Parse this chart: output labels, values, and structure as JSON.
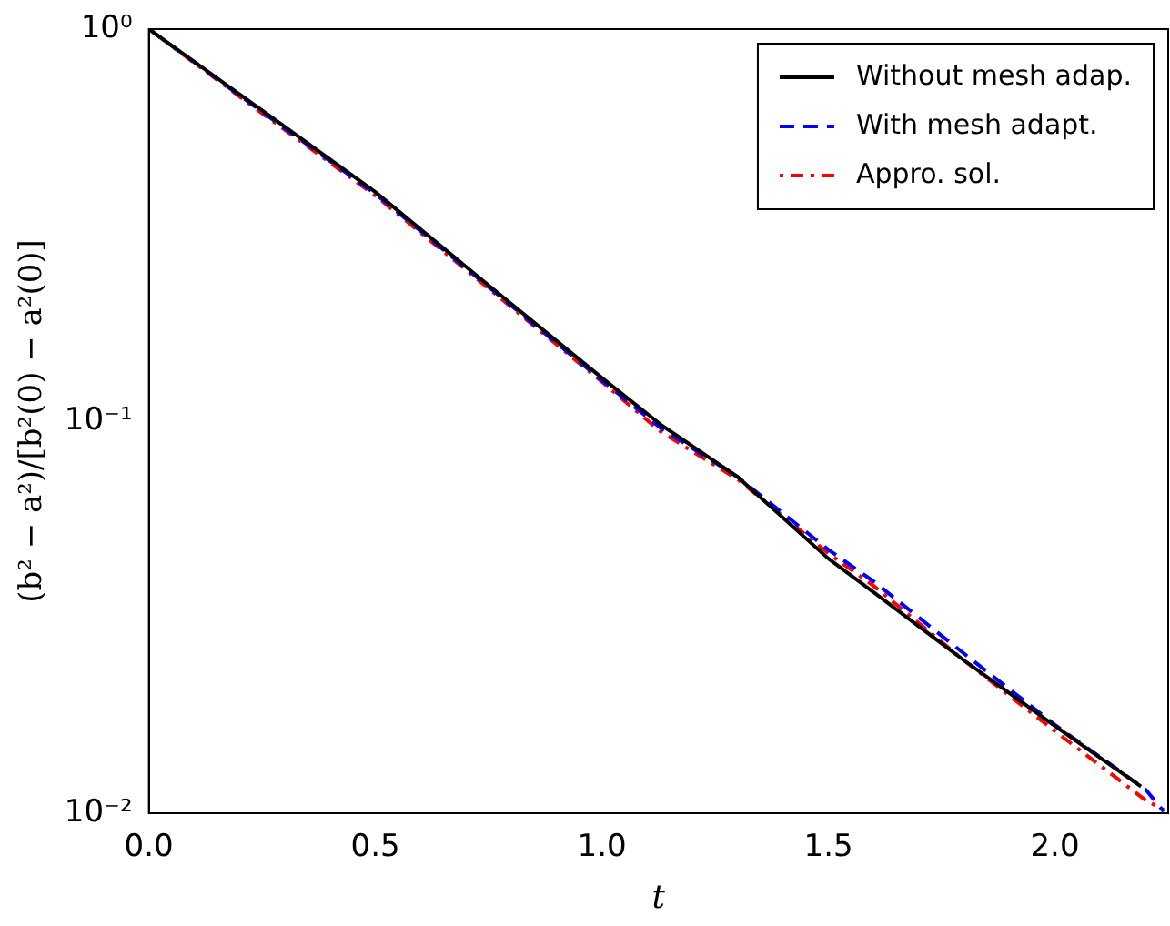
{
  "chart_data": {
    "type": "line",
    "xlabel": "t",
    "ylabel": "(b² − a²)/[b²(0) − a²(0)]",
    "log": "y",
    "grid": false,
    "legend": "top right",
    "marker": "none",
    "xlim": [
      0,
      2.25
    ],
    "xticks": [
      {
        "value": 0,
        "label": "0.0"
      },
      {
        "value": 0.5,
        "label": "0.5"
      },
      {
        "value": 1,
        "label": "1.0"
      },
      {
        "value": 1.5,
        "label": "1.5"
      },
      {
        "value": 2,
        "label": "2.0"
      }
    ],
    "ylim": [
      0.01,
      1
    ],
    "yticks": [
      {
        "value": 0.01,
        "label": "10⁻²"
      },
      {
        "value": 0.1,
        "label": "10⁻¹"
      },
      {
        "value": 1,
        "label": "10⁰"
      }
    ],
    "series": [
      {
        "name": "Without mesh adap.",
        "color": "#000000",
        "line_style": "solid",
        "x": [
          0,
          0.25,
          0.5,
          0.75,
          1.0,
          1.13,
          1.3,
          1.5,
          1.6,
          1.8,
          2.0,
          2.19
        ],
        "values": [
          1,
          0.62,
          0.384,
          0.222,
          0.129,
          0.098,
          0.072,
          0.0446,
          0.0366,
          0.0245,
          0.0167,
          0.0117
        ]
      },
      {
        "name": "With mesh adapt.",
        "color": "#0000ff",
        "line_style": "dashed",
        "x": [
          0,
          0.25,
          0.5,
          0.75,
          1.0,
          1.13,
          1.3,
          1.5,
          1.6,
          1.8,
          2.0,
          2.2,
          2.24
        ],
        "values": [
          1,
          0.615,
          0.38,
          0.22,
          0.127,
          0.096,
          0.072,
          0.047,
          0.039,
          0.0255,
          0.0168,
          0.0115,
          0.0101
        ]
      },
      {
        "name": "Appro. sol.",
        "color": "#ff0000",
        "line_style": "dotted",
        "x": [
          0,
          0.25,
          0.5,
          0.75,
          1.0,
          1.13,
          1.3,
          1.5,
          1.6,
          1.8,
          2.0,
          2.2,
          2.24
        ],
        "values": [
          1,
          0.61,
          0.376,
          0.218,
          0.126,
          0.094,
          0.071,
          0.046,
          0.038,
          0.0245,
          0.0162,
          0.0108,
          0.0102
        ]
      }
    ]
  }
}
